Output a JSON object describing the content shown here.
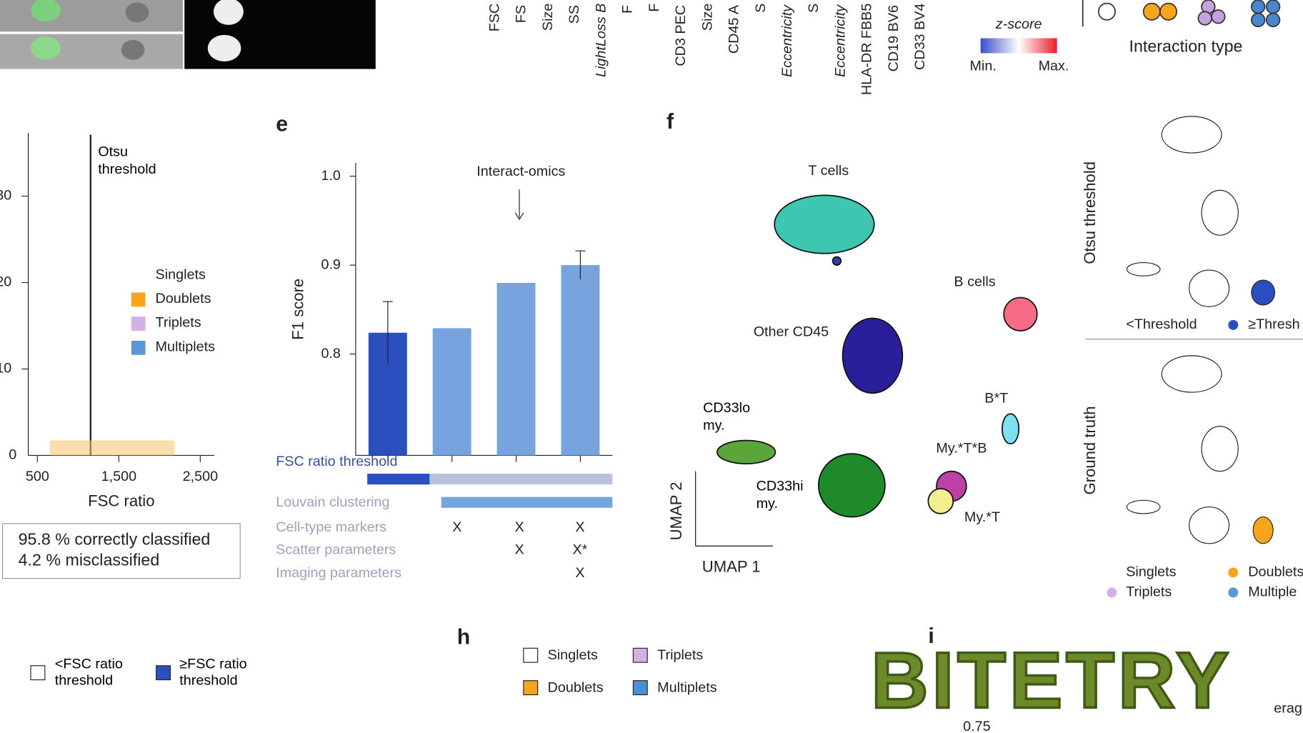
{
  "top_labels": [
    "FSC",
    "FS",
    "Size",
    "SS",
    "LightLoss B",
    "F",
    "F",
    "CD3 PEC",
    "Size",
    "CD45 A",
    "S",
    "Eccentricity",
    "S",
    "Eccentricity",
    "HLA-DR FBB5",
    "CD19 BV6",
    "CD33 BV4"
  ],
  "zscore": {
    "title": "z-score",
    "min": "Min.",
    "max": "Max."
  },
  "interaction_type": "Interaction type",
  "panel_d": {
    "yticks": [
      "0",
      "10",
      "20",
      "30"
    ],
    "xticks": [
      "500",
      "1,500",
      "2,500"
    ],
    "xlabel": "FSC ratio",
    "annotation": "Otsu threshold",
    "legend": [
      "Singlets",
      "Doublets",
      "Triplets",
      "Multiplets"
    ],
    "summary": [
      "95.8 % correctly classified",
      "4.2 % misclassified"
    ]
  },
  "panel_e": {
    "letter": "e",
    "chart_data": {
      "type": "bar",
      "ylabel": "F1 score",
      "annotation": "Interact-omics",
      "categories": [
        null,
        null,
        null,
        null
      ],
      "values": [
        0.824,
        0.829,
        0.88,
        0.9
      ],
      "errors": [
        0.035,
        0,
        0,
        0.016
      ],
      "colors": [
        "#2b4fbe",
        "#77a3de",
        "#77a3de",
        "#77a3de"
      ],
      "ylim": [
        0.686,
        1.0
      ],
      "yticks": [
        {
          "value": 1.0,
          "label": "1.0"
        },
        {
          "value": 0.9,
          "label": "0.9"
        },
        {
          "value": 0.8,
          "label": "0.8"
        }
      ]
    },
    "table": [
      {
        "label": "FSC ratio threshold",
        "cells": [
          "",
          "",
          "",
          ""
        ]
      },
      {
        "label": "Louvain clustering",
        "cells": [
          "",
          "",
          "",
          ""
        ]
      },
      {
        "label": "Cell-type markers",
        "cells": [
          "",
          "X",
          "X",
          "X"
        ]
      },
      {
        "label": "Scatter parameters",
        "cells": [
          "",
          "",
          "X",
          "X*"
        ]
      },
      {
        "label": "Imaging parameters",
        "cells": [
          "",
          "",
          "",
          "X"
        ]
      }
    ]
  },
  "panel_f": {
    "letter": "f",
    "clusters": [
      "T cells",
      "B cells",
      "Other CD45",
      "CD33lo my.",
      "CD33hi my.",
      "B*T",
      "My.*T*B",
      "My.*T"
    ],
    "xlabel": "UMAP 1",
    "ylabel": "UMAP 2"
  },
  "panel_g": {
    "rows": [
      "Otsu threshold",
      "Ground truth"
    ],
    "legend_top": [
      "<Threshold",
      "≥Thresh"
    ],
    "legend_bottom": [
      "Singlets",
      "Doublets",
      "Triplets",
      "Multiple"
    ]
  },
  "bottom_legend": [
    "<FSC ratio threshold",
    "≥FSC ratio threshold"
  ],
  "panel_h": {
    "letter": "h",
    "legend": [
      "Singlets",
      "Triplets",
      "Doublets",
      "Multiplets"
    ]
  },
  "panel_i": {
    "letter": "i",
    "logo": "BITETRY",
    "tick": "0.75",
    "cut_text": "erag"
  }
}
